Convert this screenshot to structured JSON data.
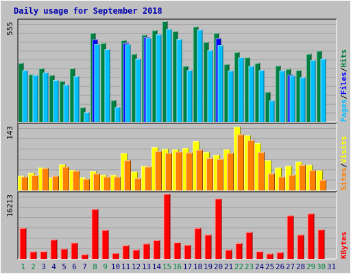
{
  "chart_data": {
    "type": "bar",
    "title": "Daily usage for September 2018",
    "days": [
      "1",
      "2",
      "3",
      "4",
      "5",
      "6",
      "7",
      "8",
      "9",
      "10",
      "11",
      "12",
      "13",
      "14",
      "15",
      "16",
      "17",
      "18",
      "19",
      "20",
      "21",
      "22",
      "23",
      "24",
      "25",
      "26",
      "27",
      "28",
      "29",
      "30",
      "31"
    ],
    "weekend_days": [
      "1",
      "2",
      "8",
      "9",
      "15",
      "16",
      "22",
      "23",
      "29",
      "30"
    ],
    "panels": [
      {
        "id": "hits-files-pages",
        "max_label": "555",
        "ylim": [
          0,
          555
        ],
        "series": [
          {
            "name": "Hits",
            "color": "#008040",
            "values": [
              325,
              262,
              295,
              258,
              225,
              295,
              80,
              490,
              435,
              120,
              450,
              375,
              480,
              505,
              555,
              500,
              308,
              525,
              440,
              490,
              318,
              385,
              355,
              325,
              165,
              310,
              292,
              285,
              375,
              392,
              0
            ]
          },
          {
            "name": "Files",
            "color": "#0000ff",
            "values": [
              0,
              0,
              0,
              0,
              0,
              0,
              0,
              455,
              0,
              0,
              435,
              0,
              468,
              0,
              0,
              0,
              0,
              0,
              0,
              460,
              0,
              0,
              0,
              0,
              0,
              0,
              260,
              0,
              0,
              0,
              0
            ]
          },
          {
            "name": "Pages",
            "color": "#00c0ff",
            "values": [
              285,
              258,
              272,
              230,
              205,
              252,
              52,
              430,
              400,
              82,
              428,
              348,
              462,
              482,
              512,
              456,
              285,
              508,
              395,
              422,
              282,
              355,
              308,
              285,
              118,
              282,
              255,
              245,
              340,
              348,
              0
            ]
          }
        ]
      },
      {
        "id": "visits-sites",
        "max_label": "143",
        "ylim": [
          0,
          143
        ],
        "series": [
          {
            "name": "Visits",
            "color": "#ffff00",
            "values": [
              32,
              38,
              50,
              28,
              57,
              45,
              28,
              42,
              34,
              34,
              82,
              41,
              54,
              95,
              91,
              90,
              93,
              108,
              84,
              78,
              90,
              140,
              121,
              104,
              66,
              50,
              54,
              63,
              56,
              44,
              0
            ]
          },
          {
            "name": "Sites",
            "color": "#ff8000",
            "values": [
              30,
              33,
              49,
              32,
              52,
              43,
              25,
              37,
              30,
              30,
              66,
              27,
              52,
              86,
              82,
              85,
              83,
              89,
              71,
              69,
              82,
              123,
              110,
              84,
              37,
              30,
              34,
              56,
              44,
              23,
              0
            ]
          }
        ]
      },
      {
        "id": "kbytes",
        "max_label": "16213",
        "ylim": [
          0,
          16213
        ],
        "series": [
          {
            "name": "KBytes",
            "color": "#ff0000",
            "values": [
              7700,
              1820,
              1850,
              4800,
              2520,
              4020,
              1130,
              12400,
              7210,
              1450,
              3370,
              2300,
              3820,
              4650,
              16213,
              4090,
              3480,
              7700,
              6030,
              15000,
              2270,
              3940,
              6690,
              1850,
              1300,
              1650,
              10800,
              6040,
              11300,
              7300,
              0
            ]
          }
        ]
      }
    ],
    "side_labels": {
      "panel1": [
        {
          "text": "Pages",
          "color": "#00c0ff"
        },
        {
          "text": "/",
          "color": "#000000"
        },
        {
          "text": "Files",
          "color": "#0000ff"
        },
        {
          "text": "/",
          "color": "#000000"
        },
        {
          "text": "Hits",
          "color": "#008040"
        }
      ],
      "panel2": [
        {
          "text": "Sites",
          "color": "#ff8000"
        },
        {
          "text": "/",
          "color": "#000000"
        },
        {
          "text": "Visits",
          "color": "#ffff00"
        }
      ],
      "panel3": [
        {
          "text": "KBytes",
          "color": "#ff0000"
        }
      ]
    },
    "colors": {
      "background": "#c0c0c0",
      "frame": "#ffffff",
      "gridline": "#a0a0a0",
      "weekday_label": "#000080",
      "weekend_label": "#008040"
    }
  }
}
